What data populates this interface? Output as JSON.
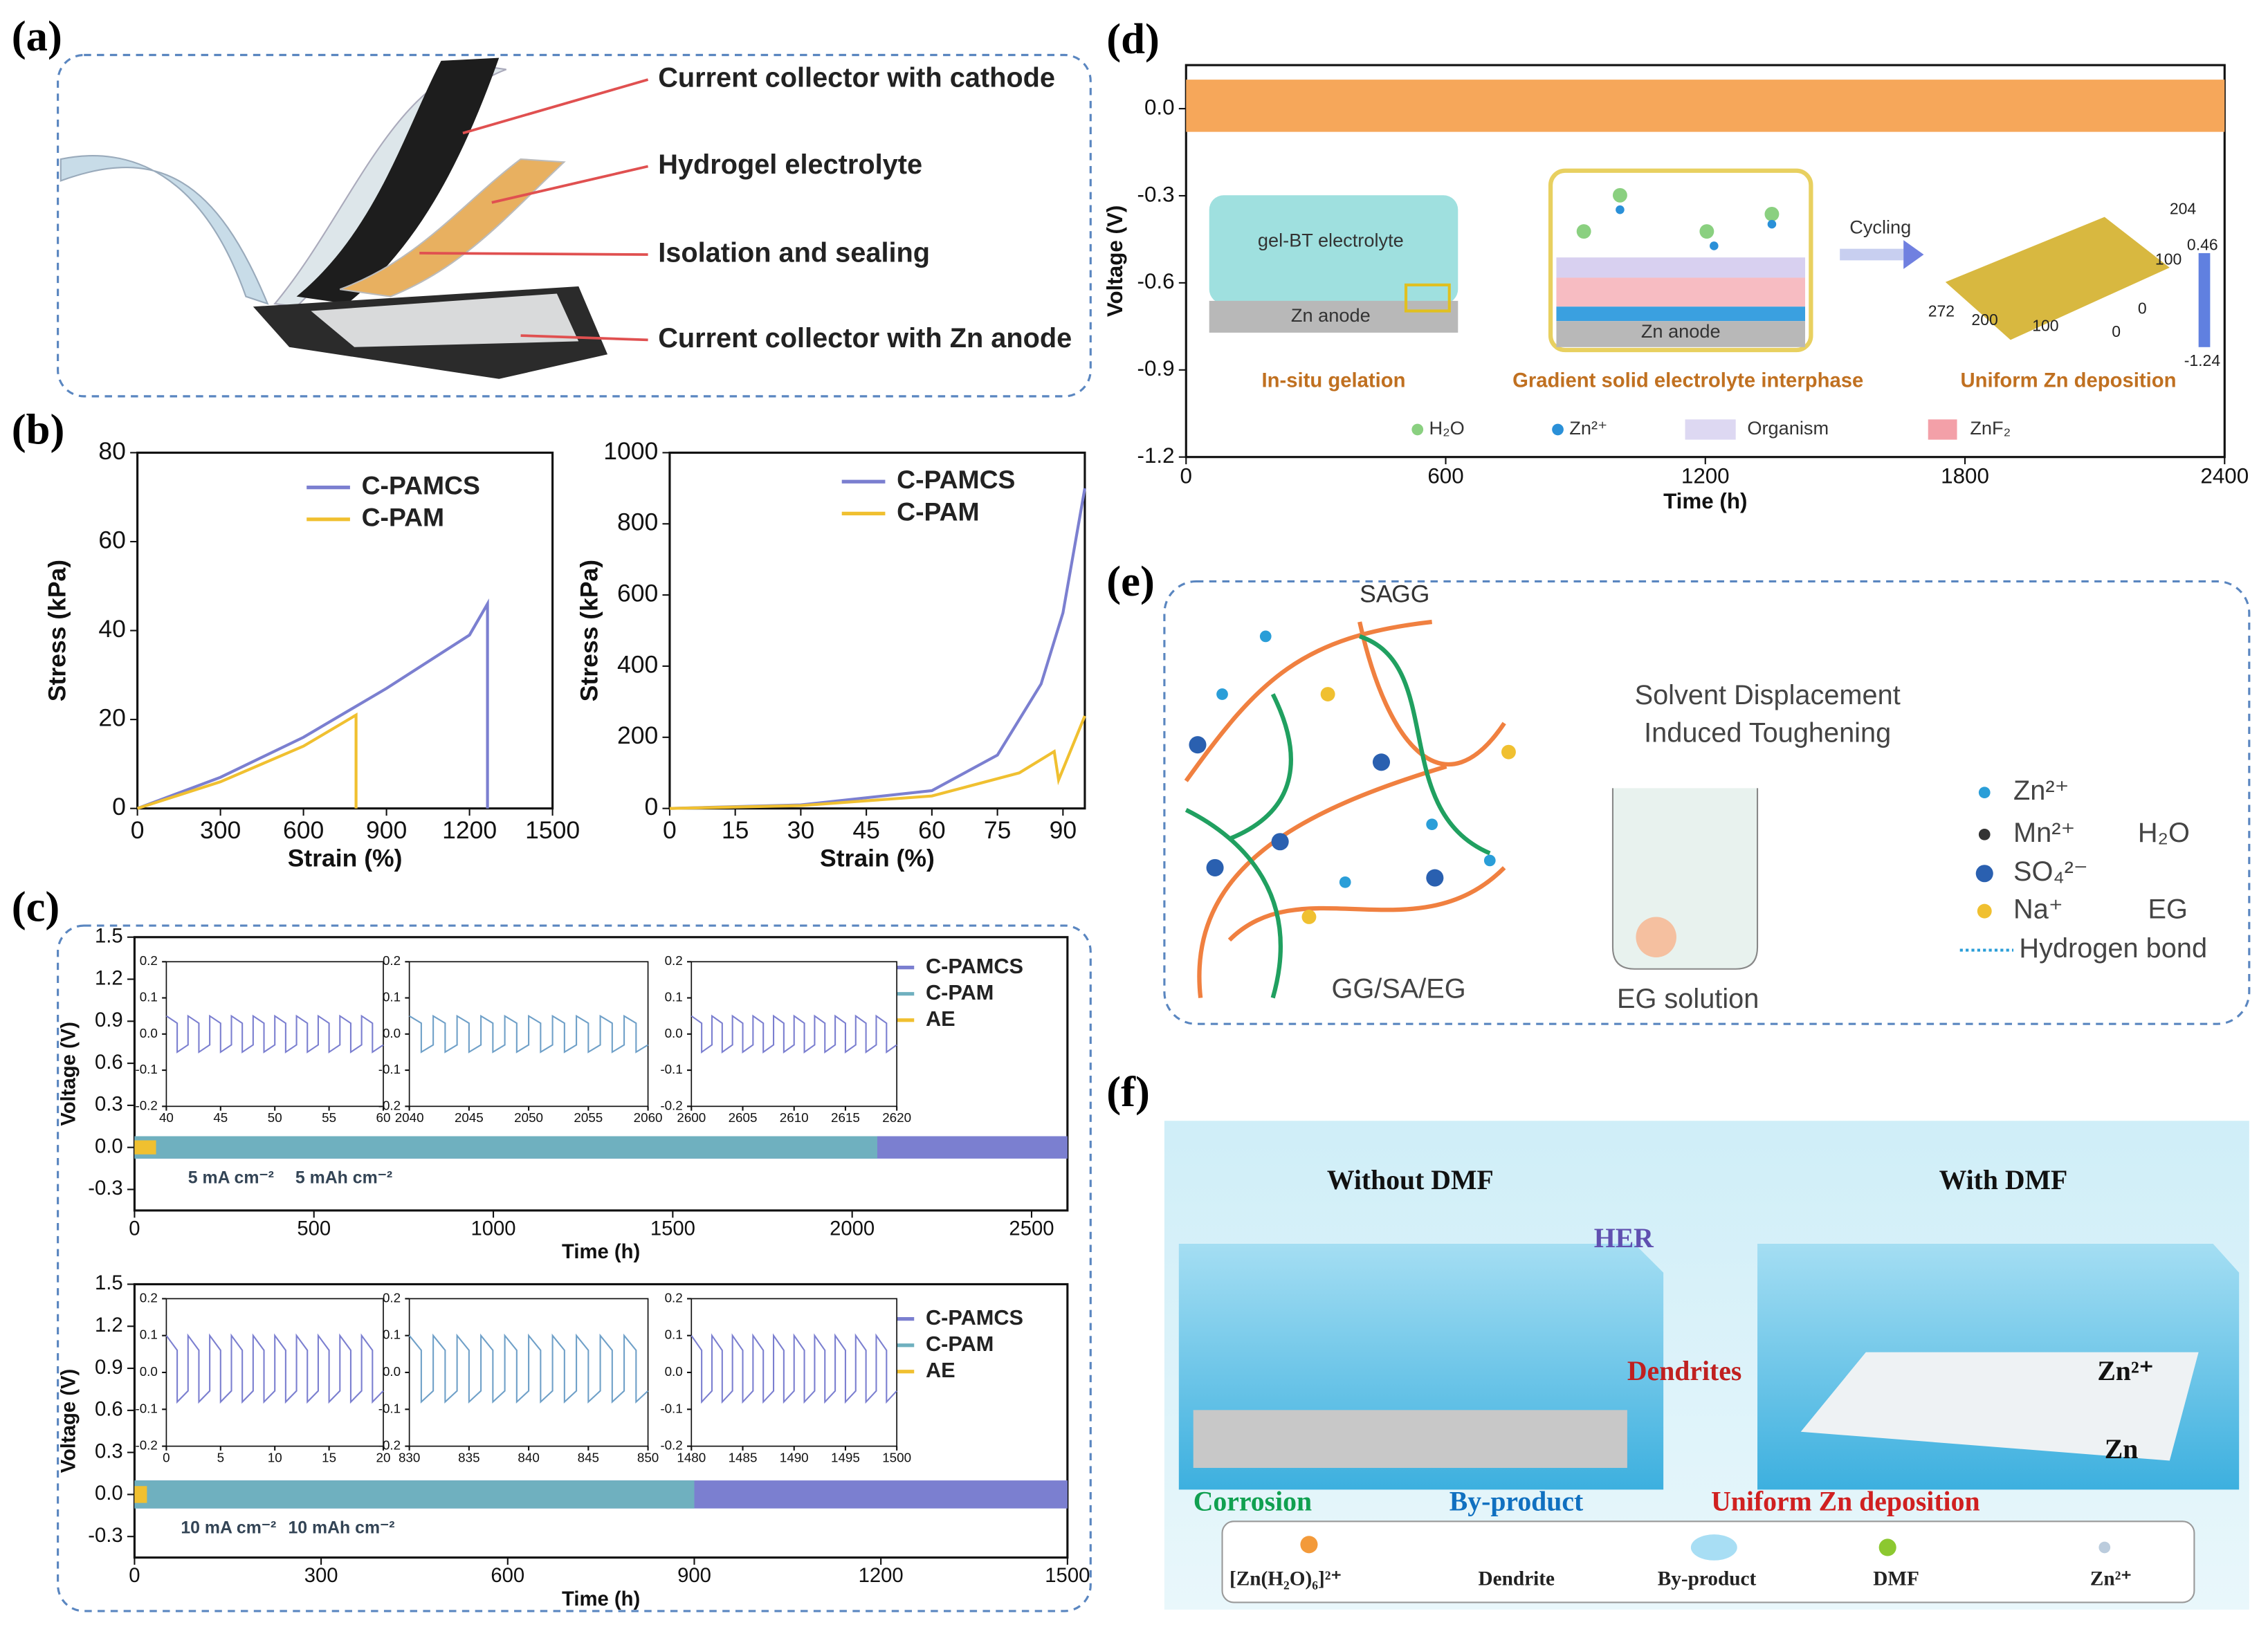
{
  "panel_labels": [
    "(a)",
    "(b)",
    "(c)",
    "(d)",
    "(e)",
    "(f)"
  ],
  "panel_a": {
    "labels": [
      "Current collector with cathode",
      "Hydrogel electrolyte",
      "Isolation and sealing",
      "Current collector with Zn anode"
    ]
  },
  "panel_d_inset": {
    "texts": [
      "gel-BT electrolyte",
      "Zn anode",
      "Zn anode",
      "Cycling"
    ],
    "map_ticks": [
      "204",
      "100",
      "0",
      "272",
      "200",
      "100",
      "0"
    ],
    "colorbar": [
      "0.46",
      "-1.24"
    ],
    "captions": [
      "In-situ gelation",
      "Gradient solid electrolyte interphase",
      "Uniform Zn deposition"
    ],
    "legend": [
      "H₂O",
      "Zn²⁺",
      "Organism",
      "ZnF₂"
    ]
  },
  "panel_e": {
    "polymers": [
      "SA",
      "GG"
    ],
    "process": [
      "Solvent Displacement",
      "Induced Toughening"
    ],
    "captions": [
      "GG/SA/EG",
      "EG solution"
    ],
    "legend": [
      "Zn²⁺",
      "Mn²⁺",
      "SO₄²⁻",
      "Na⁺",
      "H₂O",
      "EG",
      "Hydrogen bond"
    ]
  },
  "panel_f": {
    "titles": [
      "Without DMF",
      "With DMF"
    ],
    "labels": [
      "HER",
      "Dendrites",
      "Corrosion",
      "By-product",
      "Uniform Zn deposition",
      "Zn²⁺",
      "Zn"
    ],
    "legend": [
      "[Zn(H₂O)₆]²⁺",
      "Dendrite",
      "By-product",
      "DMF",
      "Zn²⁺"
    ]
  },
  "chart_data": [
    {
      "type": "line",
      "xlabel": "Strain (%)",
      "ylabel": "Stress (kPa)",
      "xlim": [
        0,
        1500
      ],
      "xticks": [
        0,
        300,
        600,
        900,
        1200,
        1500
      ],
      "ylim": [
        0,
        80
      ],
      "yticks": [
        0,
        20,
        40,
        60,
        80
      ],
      "legend": "upper right",
      "series": [
        {
          "name": "C-PAMCS",
          "color": "#7b7fd0",
          "x": [
            0,
            300,
            600,
            900,
            1200,
            1265,
            1265
          ],
          "values": [
            0,
            7,
            16,
            27,
            39,
            46,
            0
          ]
        },
        {
          "name": "C-PAM",
          "color": "#f0c030",
          "x": [
            0,
            300,
            600,
            790,
            790
          ],
          "values": [
            0,
            6,
            14,
            21,
            0
          ]
        }
      ]
    },
    {
      "type": "line",
      "xlabel": "Strain (%)",
      "ylabel": "Stress (kPa)",
      "xlim": [
        0,
        95
      ],
      "xticks": [
        0,
        15,
        30,
        45,
        60,
        75,
        90
      ],
      "ylim": [
        0,
        1000
      ],
      "yticks": [
        0,
        200,
        400,
        600,
        800,
        1000
      ],
      "legend": "upper right",
      "series": [
        {
          "name": "C-PAMCS",
          "color": "#7b7fd0",
          "x": [
            0,
            30,
            60,
            75,
            85,
            90,
            95
          ],
          "values": [
            0,
            10,
            50,
            150,
            350,
            550,
            900
          ]
        },
        {
          "name": "C-PAM",
          "color": "#f0c030",
          "x": [
            0,
            30,
            60,
            80,
            88,
            89,
            95
          ],
          "values": [
            0,
            8,
            35,
            100,
            160,
            80,
            260
          ]
        }
      ]
    },
    {
      "type": "area",
      "xlabel": "Time (h)",
      "ylabel": "Voltage (V)",
      "xlim": [
        0,
        2600
      ],
      "xticks": [
        0,
        500,
        1000,
        1500,
        2000,
        2500
      ],
      "ylim": [
        -0.45,
        1.5
      ],
      "yticks": [
        -0.3,
        {
          "value": 0,
          "label": "0.0"
        },
        0.3,
        0.6,
        0.9,
        1.2,
        1.5
      ],
      "legend": "upper right",
      "annotations": [
        "5 mA cm⁻²",
        "5 mAh cm⁻²"
      ],
      "series": [
        {
          "name": "C-PAMCS",
          "color": "#7b7fd0",
          "x": [
            0,
            2600
          ],
          "upper": [
            0.08,
            0.08
          ],
          "lower": [
            -0.08,
            -0.08
          ]
        },
        {
          "name": "C-PAM",
          "color": "#6fb0bf",
          "x": [
            0,
            2070
          ],
          "upper": [
            0.08,
            0.08
          ],
          "lower": [
            -0.08,
            -0.08
          ]
        },
        {
          "name": "AE",
          "color": "#f0c030",
          "x": [
            0,
            60
          ],
          "upper": [
            0.05,
            0.05
          ],
          "lower": [
            -0.05,
            -0.05
          ]
        }
      ]
    },
    {
      "type": "line",
      "xlim": [
        40,
        60
      ],
      "xticks": [
        40,
        45,
        50,
        55,
        60
      ],
      "ylim": [
        -0.2,
        0.2
      ],
      "yticks": [
        -0.2,
        -0.1,
        {
          "value": 0,
          "label": "0.0"
        },
        0.1,
        0.2
      ],
      "series": [
        {
          "color": "#7b7fd0",
          "x": [
            40,
            41,
            41,
            42,
            42,
            43,
            43,
            44,
            44,
            45,
            45,
            46,
            46,
            47,
            47,
            48,
            48,
            49,
            49,
            50,
            50,
            51,
            51,
            52,
            52,
            53,
            53,
            54,
            54,
            55,
            55,
            56,
            56,
            57,
            57,
            58,
            58,
            59,
            59,
            60
          ],
          "values": [
            0.05,
            0.03,
            -0.05,
            -0.03,
            0.05,
            0.03,
            -0.05,
            -0.03,
            0.05,
            0.03,
            -0.05,
            -0.03,
            0.05,
            0.03,
            -0.05,
            -0.03,
            0.05,
            0.03,
            -0.05,
            -0.03,
            0.05,
            0.03,
            -0.05,
            -0.03,
            0.05,
            0.03,
            -0.05,
            -0.03,
            0.05,
            0.03,
            -0.05,
            -0.03,
            0.05,
            0.03,
            -0.05,
            -0.03,
            0.05,
            0.03,
            -0.05,
            -0.03
          ]
        }
      ]
    },
    {
      "type": "line",
      "xlim": [
        2040,
        2060
      ],
      "xticks": [
        2040,
        2045,
        2050,
        2055,
        2060
      ],
      "ylim": [
        -0.2,
        0.2
      ],
      "yticks": [
        -0.2,
        -0.1,
        {
          "value": 0,
          "label": "0.0"
        },
        0.1,
        0.2
      ],
      "series": [
        {
          "color": "#6fa0c8",
          "x": [
            2040,
            2041,
            2041,
            2042,
            2042,
            2043,
            2043,
            2044,
            2044,
            2045,
            2045,
            2046,
            2046,
            2047,
            2047,
            2048,
            2048,
            2049,
            2049,
            2050,
            2050,
            2051,
            2051,
            2052,
            2052,
            2053,
            2053,
            2054,
            2054,
            2055,
            2055,
            2056,
            2056,
            2057,
            2057,
            2058,
            2058,
            2059,
            2059,
            2060
          ],
          "values": [
            0.05,
            0.03,
            -0.05,
            -0.03,
            0.05,
            0.03,
            -0.05,
            -0.03,
            0.05,
            0.03,
            -0.05,
            -0.03,
            0.05,
            0.03,
            -0.05,
            -0.03,
            0.05,
            0.03,
            -0.05,
            -0.03,
            0.05,
            0.03,
            -0.05,
            -0.03,
            0.05,
            0.03,
            -0.05,
            -0.03,
            0.05,
            0.03,
            -0.05,
            -0.03,
            0.05,
            0.03,
            -0.05,
            -0.03,
            0.05,
            0.03,
            -0.05,
            -0.03
          ]
        }
      ]
    },
    {
      "type": "line",
      "xlim": [
        2600,
        2620
      ],
      "xticks": [
        2600,
        2605,
        2610,
        2615,
        2620
      ],
      "ylim": [
        -0.2,
        0.2
      ],
      "yticks": [
        -0.2,
        -0.1,
        {
          "value": 0,
          "label": "0.0"
        },
        0.1,
        0.2
      ],
      "series": [
        {
          "color": "#7b7fd0",
          "x": [
            2600,
            2601,
            2601,
            2602,
            2602,
            2603,
            2603,
            2604,
            2604,
            2605,
            2605,
            2606,
            2606,
            2607,
            2607,
            2608,
            2608,
            2609,
            2609,
            2610,
            2610,
            2611,
            2611,
            2612,
            2612,
            2613,
            2613,
            2614,
            2614,
            2615,
            2615,
            2616,
            2616,
            2617,
            2617,
            2618,
            2618,
            2619,
            2619,
            2620
          ],
          "values": [
            0.05,
            0.03,
            -0.05,
            -0.03,
            0.05,
            0.03,
            -0.05,
            -0.03,
            0.05,
            0.03,
            -0.05,
            -0.03,
            0.05,
            0.03,
            -0.05,
            -0.03,
            0.05,
            0.03,
            -0.05,
            -0.03,
            0.05,
            0.03,
            -0.05,
            -0.03,
            0.05,
            0.03,
            -0.05,
            -0.03,
            0.05,
            0.03,
            -0.05,
            -0.03,
            0.05,
            0.03,
            -0.05,
            -0.03,
            0.05,
            0.03,
            -0.05,
            -0.03
          ]
        }
      ]
    },
    {
      "type": "area",
      "xlabel": "Time (h)",
      "ylabel": "Voltage (V)",
      "xlim": [
        0,
        1500
      ],
      "xticks": [
        0,
        300,
        600,
        900,
        1200,
        1500
      ],
      "ylim": [
        -0.45,
        1.5
      ],
      "yticks": [
        -0.3,
        {
          "value": 0,
          "label": "0.0"
        },
        0.3,
        0.6,
        0.9,
        1.2,
        1.5
      ],
      "legend": "upper right",
      "annotations": [
        "10 mA cm⁻²",
        "10 mAh cm⁻²"
      ],
      "series": [
        {
          "name": "C-PAMCS",
          "color": "#7b7fd0",
          "x": [
            0,
            1500
          ],
          "upper": [
            0.1,
            0.1
          ],
          "lower": [
            -0.1,
            -0.1
          ]
        },
        {
          "name": "C-PAM",
          "color": "#6fb0bf",
          "x": [
            0,
            900
          ],
          "upper": [
            0.1,
            0.1
          ],
          "lower": [
            -0.1,
            -0.1
          ]
        },
        {
          "name": "AE",
          "color": "#f0c030",
          "x": [
            0,
            20
          ],
          "upper": [
            0.06,
            0.06
          ],
          "lower": [
            -0.06,
            -0.06
          ]
        }
      ]
    },
    {
      "type": "line",
      "xlim": [
        0,
        20
      ],
      "xticks": [
        0,
        5,
        10,
        15,
        20
      ],
      "ylim": [
        -0.2,
        0.2
      ],
      "yticks": [
        -0.2,
        -0.1,
        {
          "value": 0,
          "label": "0.0"
        },
        0.1,
        0.2
      ],
      "series": [
        {
          "color": "#7b7fd0",
          "x": [
            0,
            1,
            1,
            2,
            2,
            3,
            3,
            4,
            4,
            5,
            5,
            6,
            6,
            7,
            7,
            8,
            8,
            9,
            9,
            10,
            10,
            11,
            11,
            12,
            12,
            13,
            13,
            14,
            14,
            15,
            15,
            16,
            16,
            17,
            17,
            18,
            18,
            19,
            19,
            20
          ],
          "values": [
            0.1,
            0.06,
            -0.08,
            -0.05,
            0.1,
            0.06,
            -0.08,
            -0.05,
            0.1,
            0.06,
            -0.08,
            -0.05,
            0.1,
            0.06,
            -0.08,
            -0.05,
            0.1,
            0.06,
            -0.08,
            -0.05,
            0.1,
            0.06,
            -0.08,
            -0.05,
            0.1,
            0.06,
            -0.08,
            -0.05,
            0.1,
            0.06,
            -0.08,
            -0.05,
            0.1,
            0.06,
            -0.08,
            -0.05,
            0.1,
            0.06,
            -0.08,
            -0.05
          ]
        }
      ]
    },
    {
      "type": "line",
      "xlim": [
        830,
        850
      ],
      "xticks": [
        830,
        835,
        840,
        845,
        850
      ],
      "ylim": [
        -0.2,
        0.2
      ],
      "yticks": [
        -0.2,
        -0.1,
        {
          "value": 0,
          "label": "0.0"
        },
        0.1,
        0.2
      ],
      "series": [
        {
          "color": "#6fa0c8",
          "x": [
            830,
            831,
            831,
            832,
            832,
            833,
            833,
            834,
            834,
            835,
            835,
            836,
            836,
            837,
            837,
            838,
            838,
            839,
            839,
            840,
            840,
            841,
            841,
            842,
            842,
            843,
            843,
            844,
            844,
            845,
            845,
            846,
            846,
            847,
            847,
            848,
            848,
            849,
            849,
            850
          ],
          "values": [
            0.1,
            0.06,
            -0.08,
            -0.05,
            0.1,
            0.06,
            -0.08,
            -0.05,
            0.1,
            0.06,
            -0.08,
            -0.05,
            0.1,
            0.06,
            -0.08,
            -0.05,
            0.1,
            0.06,
            -0.08,
            -0.05,
            0.1,
            0.06,
            -0.08,
            -0.05,
            0.1,
            0.06,
            -0.08,
            -0.05,
            0.1,
            0.06,
            -0.08,
            -0.05,
            0.1,
            0.06,
            -0.08,
            -0.05,
            0.1,
            0.06,
            -0.08,
            -0.05
          ]
        }
      ]
    },
    {
      "type": "line",
      "xlim": [
        1480,
        1500
      ],
      "xticks": [
        1480,
        1485,
        1490,
        1495,
        1500
      ],
      "ylim": [
        -0.2,
        0.2
      ],
      "yticks": [
        -0.2,
        -0.1,
        {
          "value": 0,
          "label": "0.0"
        },
        0.1,
        0.2
      ],
      "series": [
        {
          "color": "#7b7fd0",
          "x": [
            1480,
            1481,
            1481,
            1482,
            1482,
            1483,
            1483,
            1484,
            1484,
            1485,
            1485,
            1486,
            1486,
            1487,
            1487,
            1488,
            1488,
            1489,
            1489,
            1490,
            1490,
            1491,
            1491,
            1492,
            1492,
            1493,
            1493,
            1494,
            1494,
            1495,
            1495,
            1496,
            1496,
            1497,
            1497,
            1498,
            1498,
            1499,
            1499,
            1500
          ],
          "values": [
            0.1,
            0.06,
            -0.08,
            -0.05,
            0.1,
            0.06,
            -0.08,
            -0.05,
            0.1,
            0.06,
            -0.08,
            -0.05,
            0.1,
            0.06,
            -0.08,
            -0.05,
            0.1,
            0.06,
            -0.08,
            -0.05,
            0.1,
            0.06,
            -0.08,
            -0.05,
            0.1,
            0.06,
            -0.08,
            -0.05,
            0.1,
            0.06,
            -0.08,
            -0.05,
            0.1,
            0.06,
            -0.08,
            -0.05,
            0.1,
            0.06,
            -0.08,
            -0.05
          ]
        }
      ]
    },
    {
      "type": "area",
      "xlabel": "Time (h)",
      "ylabel": "Voltage (V)",
      "xlim": [
        0,
        2400
      ],
      "xticks": [
        0,
        600,
        1200,
        1800,
        2400
      ],
      "ylim": [
        -1.2,
        0.15
      ],
      "yticks": [
        -1.2,
        -0.9,
        -0.6,
        -0.3,
        {
          "value": 0,
          "label": "0.0"
        }
      ],
      "series": [
        {
          "color": "#f6a75a",
          "x": [
            0,
            2400
          ],
          "upper": [
            0.1,
            0.1
          ],
          "lower": [
            -0.08,
            -0.08
          ]
        }
      ]
    }
  ]
}
